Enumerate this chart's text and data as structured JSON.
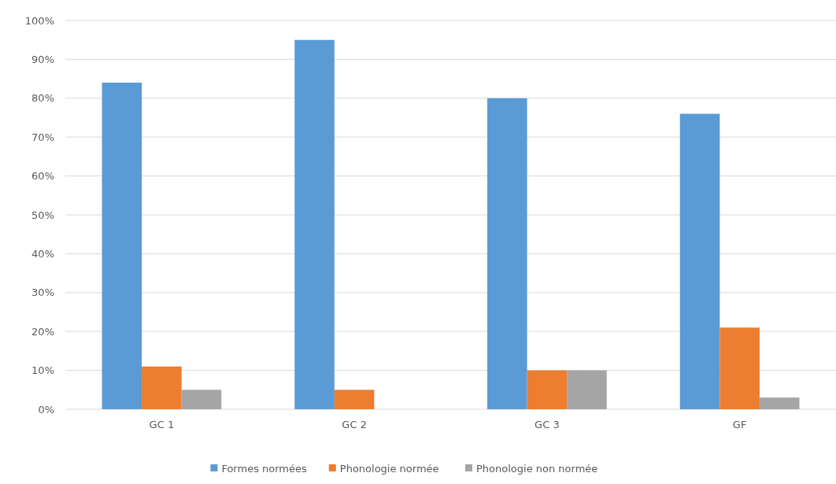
{
  "chart_data": {
    "type": "bar",
    "categories": [
      "GC 1",
      "GC 2",
      "GC 3",
      "GF"
    ],
    "series": [
      {
        "name": "Formes normées",
        "color": "#5b9bd5",
        "values": [
          84,
          95,
          80,
          76
        ]
      },
      {
        "name": "Phonologie normée",
        "color": "#ed7d31",
        "values": [
          11,
          5,
          10,
          21
        ]
      },
      {
        "name": "Phonologie non normée",
        "color": "#a5a5a5",
        "values": [
          5,
          0,
          10,
          3
        ]
      }
    ],
    "ylim": [
      0,
      100
    ],
    "yticks": [
      {
        "value": 0,
        "label": "0%"
      },
      {
        "value": 10,
        "label": "10%"
      },
      {
        "value": 20,
        "label": "20%"
      },
      {
        "value": 30,
        "label": "30%"
      },
      {
        "value": 40,
        "label": "40%"
      },
      {
        "value": 50,
        "label": "50%"
      },
      {
        "value": 60,
        "label": "60%"
      },
      {
        "value": 70,
        "label": "70%"
      },
      {
        "value": 80,
        "label": "80%"
      },
      {
        "value": 90,
        "label": "90%"
      },
      {
        "value": 100,
        "label": "100%"
      }
    ],
    "grid": "y",
    "legend": "bottom"
  }
}
